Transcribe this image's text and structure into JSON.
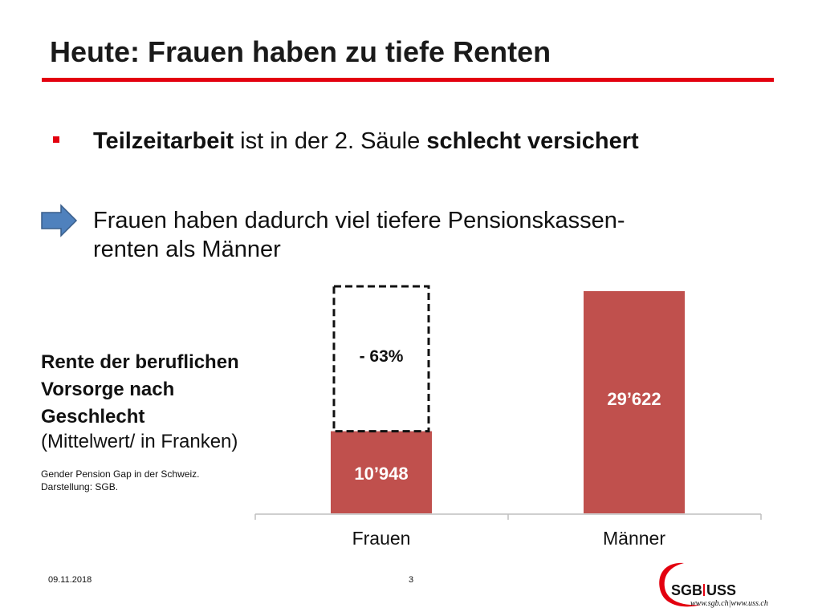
{
  "slide": {
    "title": "Heute: Frauen haben zu tiefe Renten",
    "bullet": {
      "part1_bold": "Teilzeitarbeit",
      "part2": " ist in der 2. Säule ",
      "part3_bold": "schlecht versichert"
    },
    "arrow_text_line1": "Frauen haben dadurch viel tiefere Pensionskassen-",
    "arrow_text_line2": "renten als Männer",
    "side_title_line1": "Rente der beruflichen",
    "side_title_line2": "Vorsorge nach",
    "side_title_line3": "Geschlecht",
    "side_subtitle": "(Mittelwert/ in Franken)",
    "source_line1": "Gender Pension Gap  in der Schweiz.",
    "source_line2": "Darstellung: SGB.",
    "footer_date": "09.11.2018",
    "footer_page": "3",
    "logo_text": "SGB|USS",
    "logo_url": "www.sgb.ch|www.uss.ch"
  },
  "colors": {
    "accent_red": "#e3000f",
    "bar_red": "#c0504d",
    "arrow_blue": "#4f81bd"
  },
  "chart_data": {
    "type": "bar",
    "categories": [
      "Frauen",
      "Männer"
    ],
    "values": [
      10948,
      29622
    ],
    "value_labels": [
      "10’948",
      "29’622"
    ],
    "gap_annotation": "- 63%",
    "gap_reference_value": 29622,
    "ylim": [
      0,
      29622
    ],
    "grid": false,
    "legend": "none"
  }
}
